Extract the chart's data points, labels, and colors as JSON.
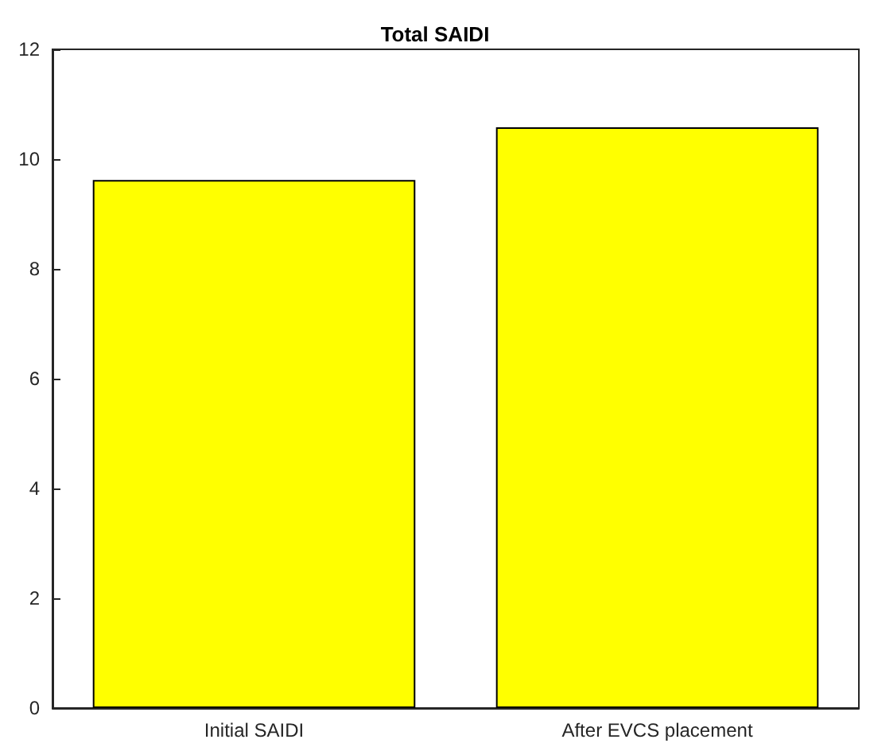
{
  "chart_data": {
    "type": "bar",
    "title": "Total SAIDI",
    "categories": [
      "Initial SAIDI",
      "After EVCS placement"
    ],
    "values": [
      9.62,
      10.58
    ],
    "color": "#ffff00",
    "ylim": [
      0,
      12
    ],
    "yticks": [
      0,
      2,
      4,
      6,
      8,
      10,
      12
    ],
    "grid": false
  }
}
